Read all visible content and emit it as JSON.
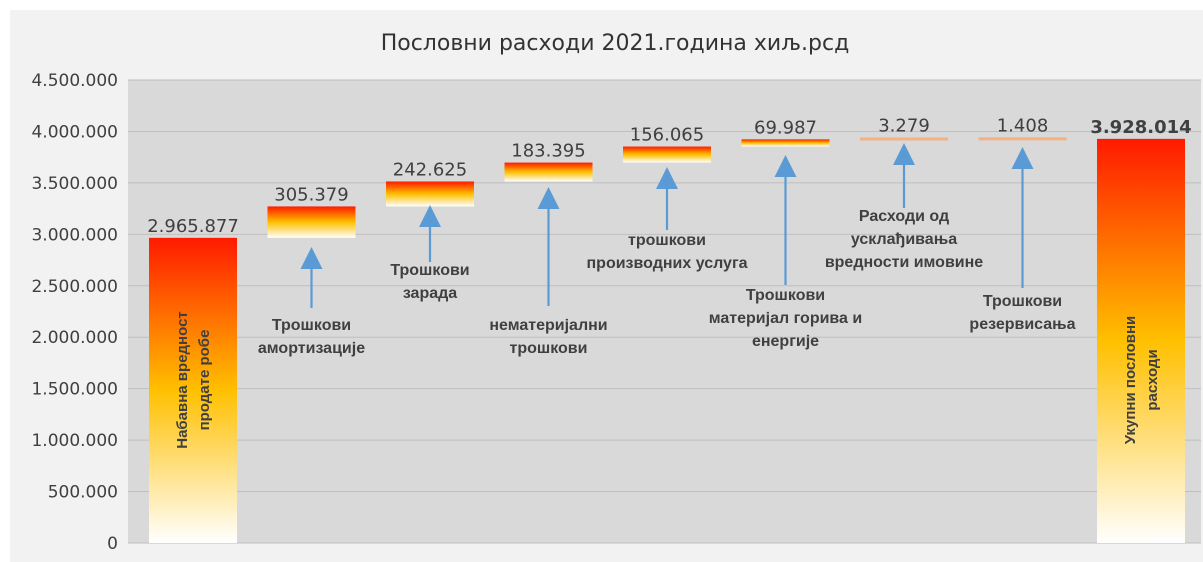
{
  "chart_data": {
    "type": "bar",
    "subtype": "waterfall",
    "title": "Пословни расходи 2021.година хиљ.рсд",
    "ylim": [
      0,
      4500000
    ],
    "y_ticks": [
      "0",
      "500.000",
      "1.000.000",
      "1.500.000",
      "2.000.000",
      "2.500.000",
      "3.000.000",
      "3.500.000",
      "4.000.000",
      "4.500.000"
    ],
    "grid": true,
    "legend": "none",
    "colors": {
      "plot_bg": "#d9d9d9",
      "outer_bg": "#f2f2f2",
      "gradient_top": "#ff1a00",
      "gradient_mid": "#ffc000",
      "gradient_bottom": "#ffffff",
      "arrow": "#5b9bd5",
      "thin_bar": "#f4b183"
    },
    "steps": [
      {
        "category": [
          "Набавна вредност",
          "продате робе"
        ],
        "value": 2965877,
        "label": "2.965.877",
        "kind": "total",
        "label_orientation": "vertical"
      },
      {
        "category": [
          "Трошкови",
          "амортизације"
        ],
        "value": 305379,
        "label": "305.379",
        "kind": "increment"
      },
      {
        "category": [
          "Трошкови",
          "зарада"
        ],
        "value": 242625,
        "label": "242.625",
        "kind": "increment"
      },
      {
        "category": [
          "нематеријални",
          "трошкови"
        ],
        "value": 183395,
        "label": "183.395",
        "kind": "increment"
      },
      {
        "category": [
          "трошкови",
          "производних услуга"
        ],
        "value": 156065,
        "label": "156.065",
        "kind": "increment"
      },
      {
        "category": [
          "Трошкови",
          "материјал горива и",
          "енергије"
        ],
        "value": 69987,
        "label": "69.987",
        "kind": "increment"
      },
      {
        "category": [
          "Расходи од",
          "усклађивања",
          "вредности имовине"
        ],
        "value": 3279,
        "label": "3.279",
        "kind": "increment"
      },
      {
        "category": [
          "Трошкови",
          "резервисања"
        ],
        "value": 1408,
        "label": "1.408",
        "kind": "increment"
      },
      {
        "category": [
          "Укупни пословни",
          "расходи"
        ],
        "value": 3928014,
        "label": "3.928.014",
        "kind": "total",
        "label_orientation": "vertical"
      }
    ]
  }
}
